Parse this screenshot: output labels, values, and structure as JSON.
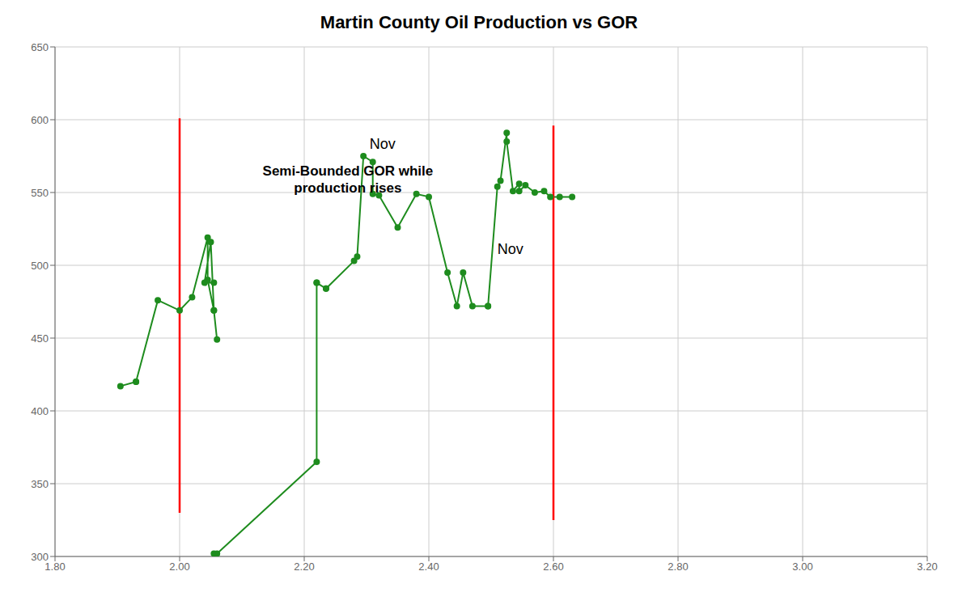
{
  "chart_data": {
    "type": "line",
    "title": "Martin County Oil Production vs GOR",
    "xlim": [
      1.8,
      3.2
    ],
    "ylim": [
      300,
      650
    ],
    "xticks": [
      {
        "value": 1.8,
        "label": "1.80"
      },
      {
        "value": 2.0,
        "label": "2.00"
      },
      {
        "value": 2.2,
        "label": "2.20"
      },
      {
        "value": 2.4,
        "label": "2.40"
      },
      {
        "value": 2.6,
        "label": "2.60"
      },
      {
        "value": 2.8,
        "label": "2.80"
      },
      {
        "value": 3.0,
        "label": "3.00"
      },
      {
        "value": 3.2,
        "label": "3.20"
      }
    ],
    "yticks": [
      300,
      350,
      400,
      450,
      500,
      550,
      600,
      650
    ],
    "grid": true,
    "color": "#1e8c1e",
    "marker": "circle",
    "segments": [
      {
        "x": [
          1.905,
          1.93
        ],
        "values": [
          417,
          420
        ]
      },
      {
        "x": [
          1.93,
          1.965,
          2.0,
          2.02,
          2.045,
          2.045,
          2.055,
          2.06,
          2.055,
          2.05,
          2.04,
          2.055
        ],
        "values": [
          420,
          476,
          469,
          478,
          519,
          490,
          469,
          449,
          469,
          516,
          488,
          488
        ]
      },
      {
        "x": [
          2.055,
          2.06,
          2.22,
          2.22
        ],
        "values": [
          302,
          302,
          365,
          488
        ]
      },
      {
        "x": [
          2.22,
          2.235
        ],
        "values": [
          488,
          484
        ]
      },
      {
        "x": [
          2.235,
          2.28,
          2.285,
          2.295,
          2.31,
          2.31,
          2.32,
          2.35,
          2.38,
          2.4,
          2.43,
          2.445,
          2.455,
          2.47,
          2.495
        ],
        "values": [
          484,
          503,
          506,
          575,
          571,
          549,
          548,
          526,
          549,
          547,
          495,
          472,
          495,
          472,
          472
        ]
      },
      {
        "x": [
          2.495,
          2.51,
          2.515,
          2.525,
          2.525,
          2.535,
          2.545,
          2.545,
          2.555,
          2.57,
          2.585,
          2.595,
          2.61,
          2.63
        ],
        "values": [
          472,
          554,
          558,
          591,
          585,
          551,
          556,
          551,
          555,
          550,
          551,
          547,
          547,
          547
        ]
      }
    ],
    "vlines": [
      {
        "x": 2.0,
        "ymin": 330,
        "ymax": 601,
        "color": "red"
      },
      {
        "x": 2.6,
        "ymin": 325,
        "ymax": 596,
        "color": "red"
      }
    ],
    "annotations": [
      {
        "text": "Nov",
        "x": 2.305,
        "y": 580
      },
      {
        "text": "Nov",
        "x": 2.51,
        "y": 508
      },
      {
        "text": "Semi-Bounded GOR while\nproduction rises",
        "x": 2.27,
        "y": 570
      }
    ]
  }
}
